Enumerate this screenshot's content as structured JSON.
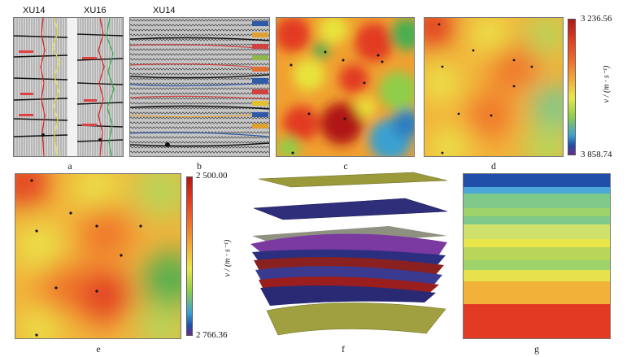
{
  "panels": {
    "a": {
      "label": "a",
      "wells": [
        "XU14",
        "XU16"
      ]
    },
    "b": {
      "label": "b",
      "wells": [
        "XU14"
      ]
    },
    "c": {
      "label": "c"
    },
    "d": {
      "label": "d"
    },
    "e": {
      "label": "e"
    },
    "f": {
      "label": "f"
    },
    "g": {
      "label": "g"
    }
  },
  "colorbar_top": {
    "max_label": "3 236.56",
    "min_label": "3 858.74",
    "axis_label": "v / (m · s⁻¹)"
  },
  "colorbar_bottom": {
    "max_label": "2 500.00",
    "min_label": "2 766.36"
  },
  "f_axis_label": "v / (m · s⁻¹)",
  "colors": {
    "red": "#d7191c",
    "orange": "#f08a24",
    "yellow": "#e8e33a",
    "green": "#4caf50",
    "blue": "#1f4fa8",
    "navy": "#23286b"
  },
  "g_layers": [
    "#1f4fa8",
    "#4aa7d8",
    "#7fc98a",
    "#9ed36b",
    "#cfe06b",
    "#e9e64a",
    "#e8d53a",
    "#b7d65a",
    "#e6e14d",
    "#f2b23a",
    "#f0742a",
    "#e23a22"
  ]
}
